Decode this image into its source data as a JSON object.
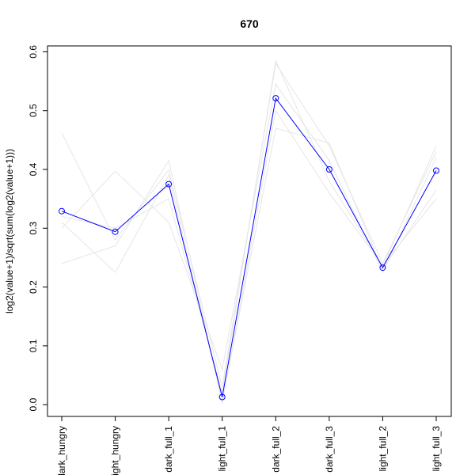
{
  "chart_data": {
    "type": "line",
    "title": "670",
    "xlabel": "",
    "ylabel": "log2(value+1)/sqrt(sum(log2(value+1)))",
    "categories": [
      "dark_hungry",
      "light_hungry",
      "dark_full_1",
      "light_full_1",
      "dark_full_2",
      "dark_full_3",
      "light_full_2",
      "light_full_3"
    ],
    "ylim": [
      -0.02,
      0.61
    ],
    "yticks": [
      0.0,
      0.1,
      0.2,
      0.3,
      0.4,
      0.5,
      0.6
    ],
    "grid": false,
    "legend": "none",
    "highlight": {
      "color": "#0000ff",
      "values": [
        0.329,
        0.294,
        0.375,
        0.013,
        0.521,
        0.4,
        0.233,
        0.398
      ]
    },
    "background_series_color": "#e6e6e6",
    "background_series": [
      {
        "values": [
          0.462,
          0.28,
          0.399,
          0.03,
          0.58,
          0.44,
          0.24,
          0.43
        ]
      },
      {
        "values": [
          0.24,
          0.27,
          0.415,
          0.002,
          0.5,
          0.36,
          0.237,
          0.35
        ]
      },
      {
        "values": [
          0.3,
          0.397,
          0.31,
          0.06,
          0.545,
          0.415,
          0.225,
          0.42
        ]
      },
      {
        "values": [
          0.31,
          0.225,
          0.39,
          0.005,
          0.47,
          0.445,
          0.23,
          0.365
        ]
      },
      {
        "values": [
          0.32,
          0.3,
          0.35,
          0.02,
          0.585,
          0.38,
          0.235,
          0.44
        ]
      }
    ]
  }
}
